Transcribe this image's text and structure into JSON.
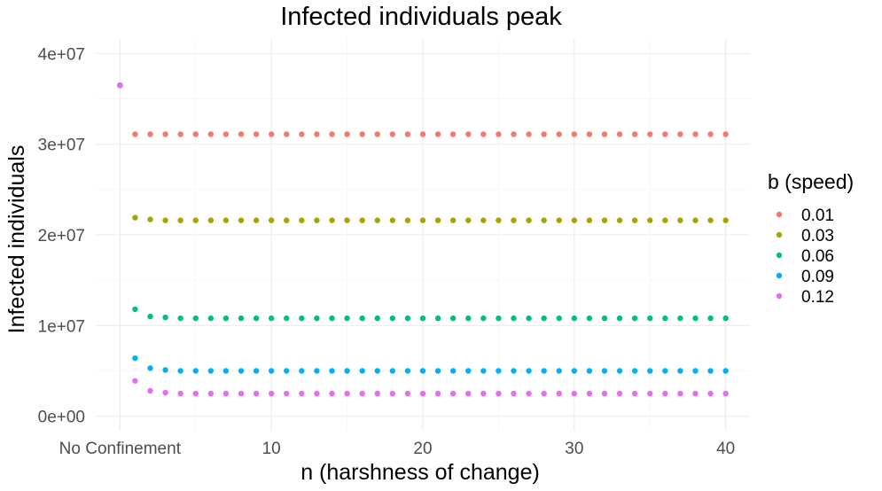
{
  "chart_data": {
    "type": "scatter",
    "title": "Infected individuals peak",
    "xlabel": "n (harshness of change)",
    "ylabel": "Infected individuals",
    "xlim": [
      -1.6,
      41.6
    ],
    "ylim": [
      -1600000,
      41600000
    ],
    "x_ticks": [
      {
        "value": 0,
        "label": "No Confinement"
      },
      {
        "value": 10,
        "label": "10"
      },
      {
        "value": 20,
        "label": "20"
      },
      {
        "value": 30,
        "label": "30"
      },
      {
        "value": 40,
        "label": "40"
      }
    ],
    "y_ticks": [
      {
        "value": 0,
        "label": "0e+00"
      },
      {
        "value": 10000000,
        "label": "1e+07"
      },
      {
        "value": 20000000,
        "label": "2e+07"
      },
      {
        "value": 30000000,
        "label": "3e+07"
      },
      {
        "value": 40000000,
        "label": "4e+07"
      }
    ],
    "grid": true,
    "legend": {
      "title": "b (speed)",
      "position": "right"
    },
    "x": [
      0,
      1,
      2,
      3,
      4,
      5,
      6,
      7,
      8,
      9,
      10,
      11,
      12,
      13,
      14,
      15,
      16,
      17,
      18,
      19,
      20,
      21,
      22,
      23,
      24,
      25,
      26,
      27,
      28,
      29,
      30,
      31,
      32,
      33,
      34,
      35,
      36,
      37,
      38,
      39,
      40
    ],
    "series": [
      {
        "name": "0.01",
        "color": "#F8766D",
        "values": [
          36500000,
          31100000,
          31100000,
          31100000,
          31100000,
          31100000,
          31100000,
          31100000,
          31100000,
          31100000,
          31100000,
          31100000,
          31100000,
          31100000,
          31100000,
          31100000,
          31100000,
          31100000,
          31100000,
          31100000,
          31100000,
          31100000,
          31100000,
          31100000,
          31100000,
          31100000,
          31100000,
          31100000,
          31100000,
          31100000,
          31100000,
          31100000,
          31100000,
          31100000,
          31100000,
          31100000,
          31100000,
          31100000,
          31100000,
          31100000,
          31100000
        ]
      },
      {
        "name": "0.03",
        "color": "#A3A500",
        "values": [
          36500000,
          21900000,
          21700000,
          21600000,
          21600000,
          21600000,
          21600000,
          21600000,
          21600000,
          21600000,
          21600000,
          21600000,
          21600000,
          21600000,
          21600000,
          21600000,
          21600000,
          21600000,
          21600000,
          21600000,
          21600000,
          21600000,
          21600000,
          21600000,
          21600000,
          21600000,
          21600000,
          21600000,
          21600000,
          21600000,
          21600000,
          21600000,
          21600000,
          21600000,
          21600000,
          21600000,
          21600000,
          21600000,
          21600000,
          21600000,
          21600000
        ]
      },
      {
        "name": "0.06",
        "color": "#00BF7D",
        "values": [
          36500000,
          11800000,
          11000000,
          10900000,
          10800000,
          10800000,
          10800000,
          10800000,
          10800000,
          10800000,
          10800000,
          10800000,
          10800000,
          10800000,
          10800000,
          10800000,
          10800000,
          10800000,
          10800000,
          10800000,
          10800000,
          10800000,
          10800000,
          10800000,
          10800000,
          10800000,
          10800000,
          10800000,
          10800000,
          10800000,
          10800000,
          10800000,
          10800000,
          10800000,
          10800000,
          10800000,
          10800000,
          10800000,
          10800000,
          10800000,
          10800000
        ]
      },
      {
        "name": "0.09",
        "color": "#00B0F6",
        "values": [
          36500000,
          6400000,
          5300000,
          5100000,
          5000000,
          5000000,
          5000000,
          5000000,
          5000000,
          5000000,
          5000000,
          5000000,
          5000000,
          5000000,
          5000000,
          5000000,
          5000000,
          5000000,
          5000000,
          5000000,
          5000000,
          5000000,
          5000000,
          5000000,
          5000000,
          5000000,
          5000000,
          5000000,
          5000000,
          5000000,
          5000000,
          5000000,
          5000000,
          5000000,
          5000000,
          5000000,
          5000000,
          5000000,
          5000000,
          5000000,
          5000000
        ]
      },
      {
        "name": "0.12",
        "color": "#E76BF3",
        "values": [
          36500000,
          3900000,
          2800000,
          2600000,
          2500000,
          2500000,
          2500000,
          2500000,
          2500000,
          2500000,
          2500000,
          2500000,
          2500000,
          2500000,
          2500000,
          2500000,
          2500000,
          2500000,
          2500000,
          2500000,
          2500000,
          2500000,
          2500000,
          2500000,
          2500000,
          2500000,
          2500000,
          2500000,
          2500000,
          2500000,
          2500000,
          2500000,
          2500000,
          2500000,
          2500000,
          2500000,
          2500000,
          2500000,
          2500000,
          2500000,
          2500000
        ]
      }
    ]
  }
}
